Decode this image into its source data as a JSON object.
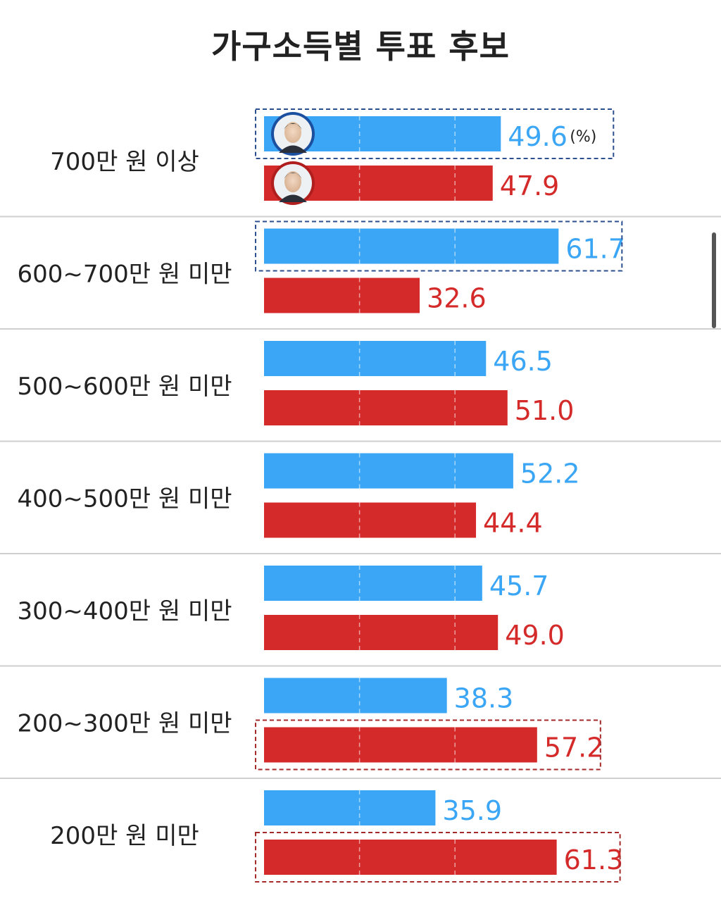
{
  "chart_data": {
    "type": "bar",
    "title": "가구소득별 투표 후보",
    "unit": "(%)",
    "categories": [
      "700만 원 이상",
      "600~700만 원 미만",
      "500~600만 원 미만",
      "400~500만 원 미만",
      "300~400만 원 미만",
      "200~300만 원 미만",
      "200만 원 미만"
    ],
    "series": [
      {
        "color": "#3aa6f5",
        "label_color": "#3aa6f5",
        "values": [
          49.6,
          61.7,
          46.5,
          52.2,
          45.7,
          38.3,
          35.9
        ]
      },
      {
        "color": "#d42a2a",
        "label_color": "#d42a2a",
        "values": [
          47.9,
          32.6,
          51.0,
          44.4,
          49.0,
          57.2,
          61.3
        ]
      }
    ],
    "highlighted_winner": [
      0,
      0,
      null,
      null,
      null,
      1,
      1
    ],
    "candidate_photos": [
      "blue-candidate-photo",
      "red-candidate-photo"
    ],
    "gridlines": true,
    "xlim": [
      0,
      64
    ]
  }
}
